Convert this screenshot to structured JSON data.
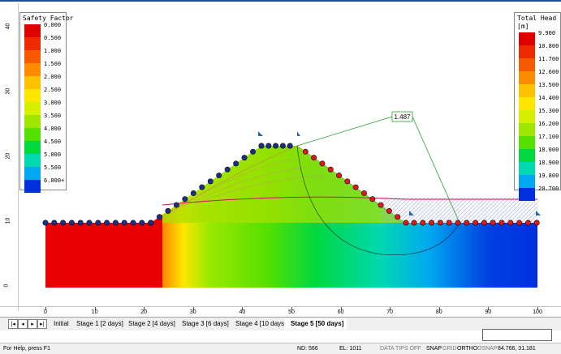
{
  "sf_legend": {
    "title": "Safety Factor",
    "items": [
      {
        "label": "0.000",
        "color": "#e00000"
      },
      {
        "label": "0.500",
        "color": "#f02a00"
      },
      {
        "label": "1.000",
        "color": "#f85a00"
      },
      {
        "label": "1.500",
        "color": "#ff8c00"
      },
      {
        "label": "2.000",
        "color": "#ffc000"
      },
      {
        "label": "2.500",
        "color": "#ffe600"
      },
      {
        "label": "3.000",
        "color": "#d6f000"
      },
      {
        "label": "3.500",
        "color": "#9ee800"
      },
      {
        "label": "4.000",
        "color": "#55e000"
      },
      {
        "label": "4.500",
        "color": "#00d840"
      },
      {
        "label": "5.000",
        "color": "#00d8b0"
      },
      {
        "label": "5.500",
        "color": "#00a8f0"
      },
      {
        "label": "6.000+",
        "color": "#0030e0"
      }
    ]
  },
  "head_legend": {
    "title": "Total Head",
    "unit": "[m]",
    "items": [
      {
        "label": "9.900",
        "color": "#e00000"
      },
      {
        "label": "10.800",
        "color": "#f02a00"
      },
      {
        "label": "11.700",
        "color": "#f85a00"
      },
      {
        "label": "12.600",
        "color": "#ff8c00"
      },
      {
        "label": "13.500",
        "color": "#ffc000"
      },
      {
        "label": "14.400",
        "color": "#ffe600"
      },
      {
        "label": "15.300",
        "color": "#d6f000"
      },
      {
        "label": "16.200",
        "color": "#9ee800"
      },
      {
        "label": "17.100",
        "color": "#55e000"
      },
      {
        "label": "18.000",
        "color": "#00d840"
      },
      {
        "label": "18.900",
        "color": "#00d8b0"
      },
      {
        "label": "19.800",
        "color": "#00a8f0"
      },
      {
        "label": "20.700",
        "color": "#0030e0"
      }
    ]
  },
  "min_fs_label": "1.487",
  "x_ticks": [
    "0",
    "10",
    "20",
    "30",
    "40",
    "50",
    "60",
    "70",
    "80",
    "90",
    "100"
  ],
  "y_ticks": [
    "0",
    "10",
    "20",
    "30",
    "40"
  ],
  "nav_buttons": [
    "|◂",
    "◂",
    "▸",
    "▸|"
  ],
  "tabs": [
    {
      "label": "Initial",
      "active": false
    },
    {
      "label": "Stage 1 [2 days]",
      "active": false
    },
    {
      "label": "Stage 2 [4 days]",
      "active": false
    },
    {
      "label": "Stage 3 [6 days]",
      "active": false
    },
    {
      "label": "Stage 4 [10 days]",
      "active": false
    },
    {
      "label": "Stage 5 [50 days]",
      "active": true
    }
  ],
  "status": {
    "help": "For Help, press F1",
    "nd": "ND: 566",
    "el": "EL: 1011",
    "data_tips": "DATA TIPS OFF",
    "snap": "SNAP",
    "grid": "GRID",
    "ortho": "ORTHO",
    "osnap": "OSNAP",
    "coords": "84.766, 31.181"
  }
}
